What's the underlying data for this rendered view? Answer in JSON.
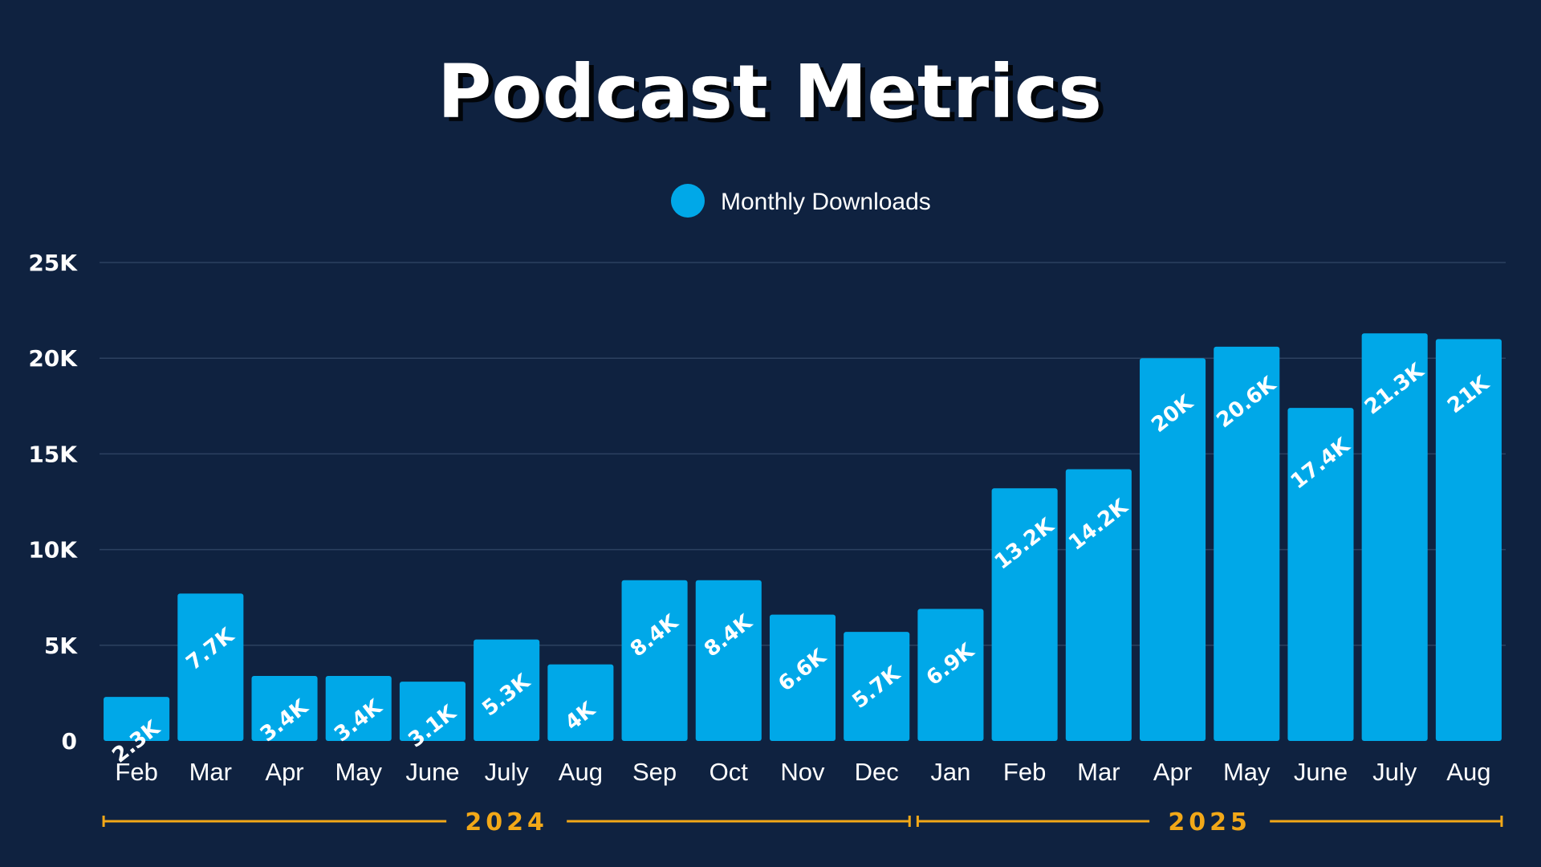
{
  "chart_data": {
    "type": "bar",
    "title": "Podcast Metrics",
    "legend": {
      "label": "Monthly Downloads",
      "position": "top-center"
    },
    "categories": [
      "Feb",
      "Mar",
      "Apr",
      "May",
      "June",
      "July",
      "Aug",
      "Sep",
      "Oct",
      "Nov",
      "Dec",
      "Jan",
      "Feb",
      "Mar",
      "Apr",
      "May",
      "June",
      "July",
      "Aug"
    ],
    "series": [
      {
        "name": "Monthly Downloads",
        "values": [
          2300,
          7700,
          3400,
          3400,
          3100,
          5300,
          4000,
          8400,
          8400,
          6600,
          5700,
          6900,
          13200,
          14200,
          20000,
          20600,
          17400,
          21300,
          21000
        ],
        "labels": [
          "2.3K",
          "7.7K",
          "3.4K",
          "3.4K",
          "3.1K",
          "5.3K",
          "4K",
          "8.4K",
          "8.4K",
          "6.6K",
          "5.7K",
          "6.9K",
          "13.2K",
          "14.2K",
          "20K",
          "20.6K",
          "17.4K",
          "21.3K",
          "21K"
        ]
      }
    ],
    "ylim": [
      0,
      25000
    ],
    "yticks": [
      0,
      5000,
      10000,
      15000,
      20000,
      25000
    ],
    "ytick_labels": [
      "0",
      "5K",
      "10K",
      "15K",
      "20K",
      "25K"
    ],
    "grid": true,
    "xlabel": "",
    "ylabel": "",
    "year_groups": [
      {
        "label": "2024",
        "start_index": 0,
        "end_index": 10
      },
      {
        "label": "2025",
        "start_index": 11,
        "end_index": 18
      }
    ],
    "colors": {
      "background": "#0f2240",
      "bar": "#00a8e8",
      "grid": "#2c4160",
      "axis_text": "#ffffff",
      "year_accent": "#f2a818"
    }
  }
}
